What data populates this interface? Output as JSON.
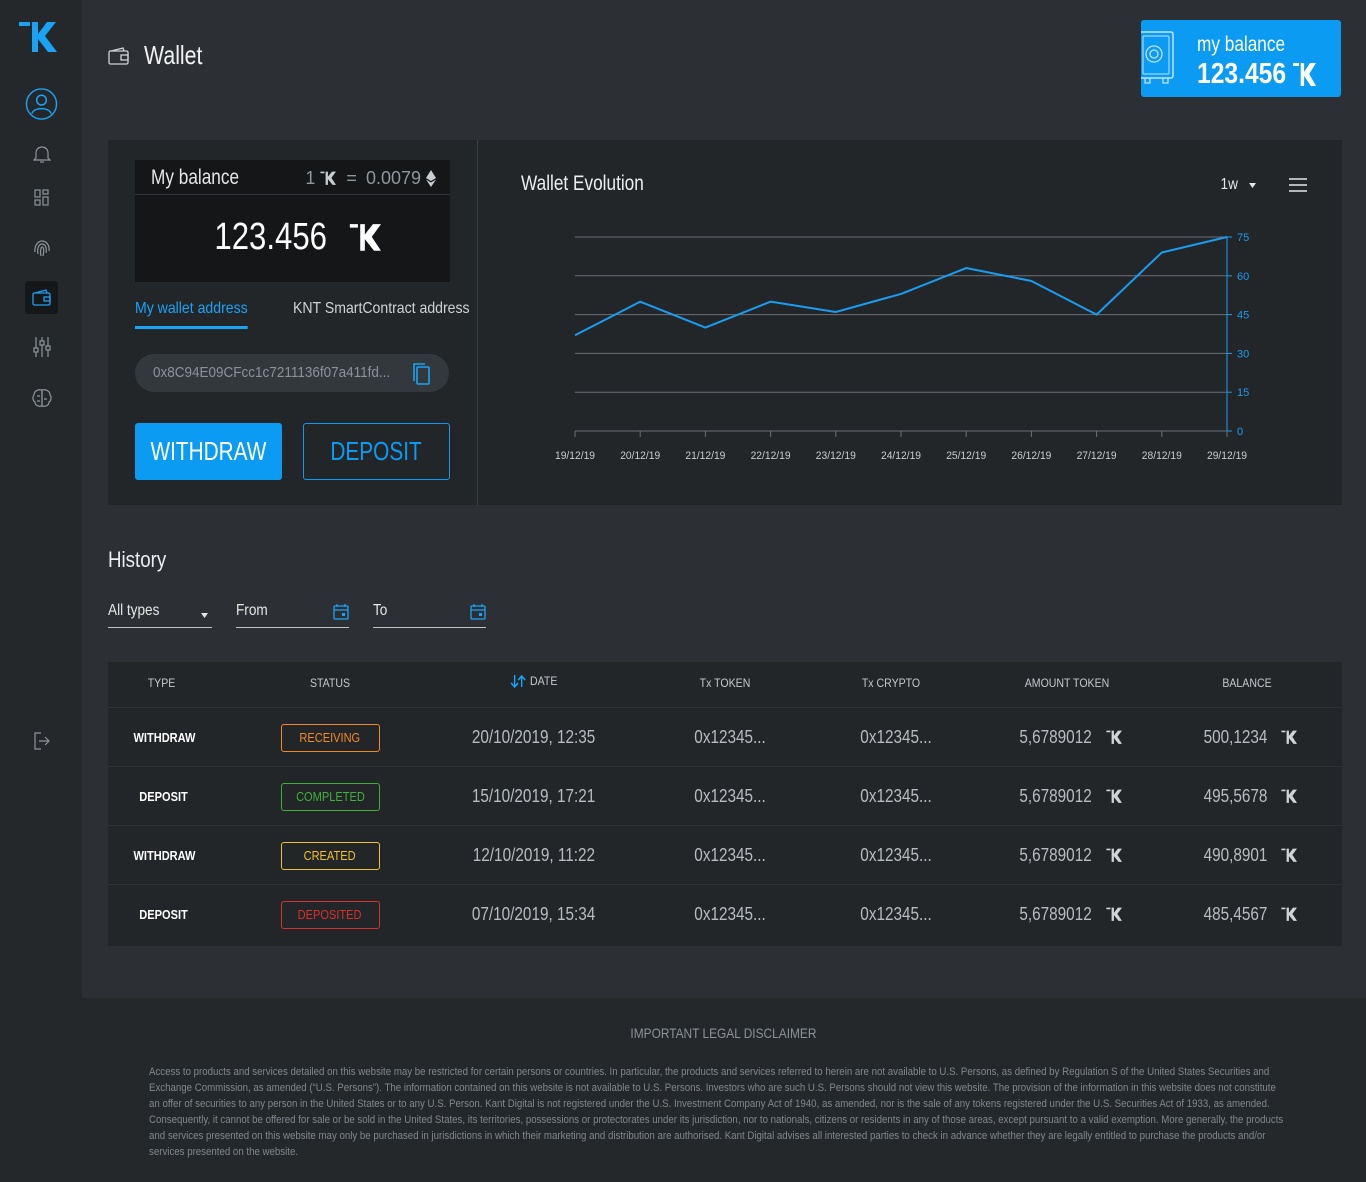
{
  "header": {
    "title": "Wallet"
  },
  "balance_card": {
    "label": "my balance",
    "value": "123.456"
  },
  "my_balance": {
    "label": "My balance",
    "rate_left": "1",
    "rate_eq": "=",
    "rate_right": "0.0079",
    "value": "123.456"
  },
  "address_tabs": {
    "my_wallet": "My wallet address",
    "smart_contract": "KNT SmartContract address"
  },
  "address": {
    "value": "0x8C94E09CFcc1c7211136f07a411fd..."
  },
  "buttons": {
    "withdraw": "WITHDRAW",
    "deposit": "DEPOSIT"
  },
  "chart_header": {
    "title": "Wallet Evolution",
    "range": "1w"
  },
  "chart_data": {
    "type": "line",
    "title": "Wallet Evolution",
    "x": [
      "19/12/19",
      "20/12/19",
      "21/12/19",
      "22/12/19",
      "23/12/19",
      "24/12/19",
      "25/12/19",
      "26/12/19",
      "27/12/19",
      "28/12/19",
      "29/12/19"
    ],
    "values": [
      37,
      50,
      40,
      50,
      46,
      53,
      63,
      58,
      45,
      69,
      75
    ],
    "ylim": [
      0,
      75
    ],
    "yticks": [
      0,
      15,
      30,
      45,
      60,
      75
    ],
    "grid": true,
    "line_color": "#1a9cf0"
  },
  "history": {
    "title": "History",
    "filters": {
      "type": "All types",
      "from": "From",
      "to": "To"
    },
    "columns": [
      "TYPE",
      "STATUS",
      "DATE",
      "Tx TOKEN",
      "Tx CRYPTO",
      "AMOUNT TOKEN",
      "BALANCE"
    ],
    "rows": [
      {
        "type": "WITHDRAW",
        "status": "RECEIVING",
        "date": "20/10/2019, 12:35",
        "tx_token": "0x12345...",
        "tx_crypto": "0x12345...",
        "amount": "5,6789012",
        "balance": "500,1234"
      },
      {
        "type": "DEPOSIT",
        "status": "COMPLETED",
        "date": "15/10/2019, 17:21",
        "tx_token": "0x12345...",
        "tx_crypto": "0x12345...",
        "amount": "5,6789012",
        "balance": "495,5678"
      },
      {
        "type": "WITHDRAW",
        "status": "CREATED",
        "date": "12/10/2019, 11:22",
        "tx_token": "0x12345...",
        "tx_crypto": "0x12345...",
        "amount": "5,6789012",
        "balance": "490,8901"
      },
      {
        "type": "DEPOSIT",
        "status": "DEPOSITED",
        "date": "07/10/2019, 15:34",
        "tx_token": "0x12345...",
        "tx_crypto": "0x12345...",
        "amount": "5,6789012",
        "balance": "485,4567"
      }
    ]
  },
  "footer": {
    "title": "IMPORTANT LEGAL DISCLAIMER",
    "text": "Access to products and services detailed on this website may be restricted for certain persons or countries. In particular, the products and services referred to herein are not available to U.S. Persons, as defined by Regulation S of the United States Securities and Exchange Commission, as amended (“U.S. Persons”). The information contained on this website is not available to U.S. Persons. Investors who are such U.S. Persons should not view this website. The provision of the information in this website does not constitute an offer of securities to any person in the United States or to any U.S. Person. Kant Digital is not registered under the U.S. Investment Company Act of 1940, as amended, nor is the sale of any tokens registered under the U.S. Securities Act of 1933, as amended. Consequently, it cannot be offered for sale or be sold in the United States, its territories, possessions or protectorates under its jurisdiction, nor to nationals, citizens or residents in any of those areas, except pursuant to a valid exemption. More generally, the products and services presented on this website may only be purchased in jurisdictions in which their marketing and distribution are authorised. Kant Digital advises all interested parties to check in advance whether they are legally entitled to purchase the products and/or services presented on the website."
  },
  "icons": {
    "token": "kant-token-icon",
    "nav": [
      "profile-icon",
      "bell-icon",
      "dashboard-icon",
      "fingerprint-icon",
      "wallet-icon",
      "sliders-icon",
      "brain-icon",
      "logout-icon"
    ]
  },
  "colors": {
    "accent": "#0c9bf2",
    "receiving": "#f08a24",
    "completed": "#3fb13a",
    "created": "#f2c12e",
    "deposited": "#d8312b"
  }
}
